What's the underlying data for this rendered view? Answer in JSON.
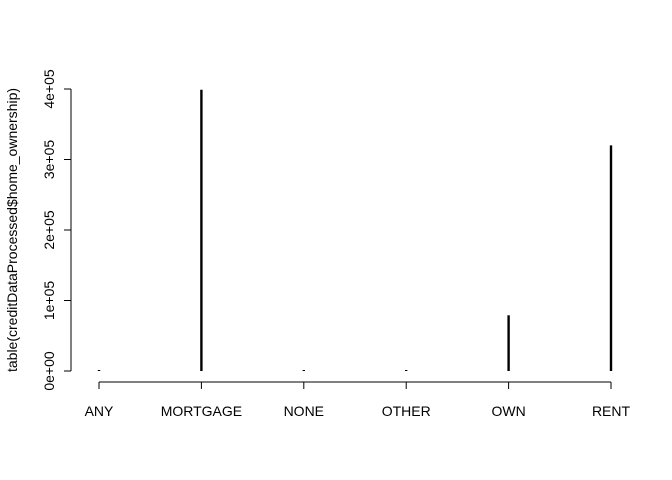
{
  "chart_data": {
    "type": "bar",
    "title": "",
    "xlabel": "",
    "ylabel": "table(creditDataProcessed$home_ownership)",
    "categories": [
      "ANY",
      "MORTGAGE",
      "NONE",
      "OTHER",
      "OWN",
      "RENT"
    ],
    "values": [
      3,
      399000,
      50,
      150,
      79000,
      320000
    ],
    "ylim": [
      0,
      400000
    ],
    "yticks": [
      {
        "value": 0,
        "label": "0e+00"
      },
      {
        "value": 100000,
        "label": "1e+05"
      },
      {
        "value": 200000,
        "label": "2e+05"
      },
      {
        "value": 300000,
        "label": "3e+05"
      },
      {
        "value": 400000,
        "label": "4e+05"
      }
    ],
    "grid": false,
    "bar_color": "#000000"
  }
}
